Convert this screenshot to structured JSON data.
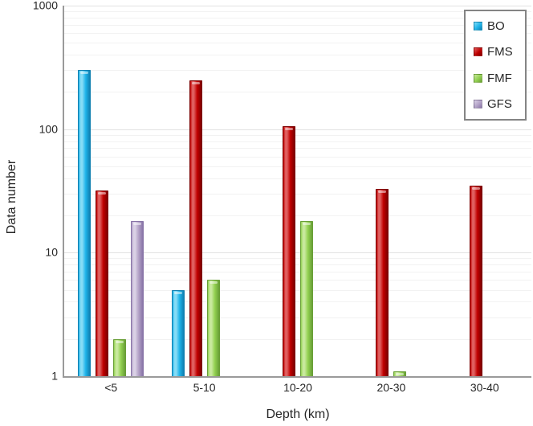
{
  "chart_data": {
    "type": "bar",
    "y_scale": "log",
    "title": "",
    "xlabel": "Depth (km)",
    "ylabel": "Data number",
    "ylim": [
      1,
      1000
    ],
    "y_ticks": [
      1,
      10,
      100,
      1000
    ],
    "grid": "horizontal log minor + major gridlines",
    "legend_position": "top-right",
    "categories": [
      "<5",
      "5-10",
      "10-20",
      "20-30",
      "30-40"
    ],
    "series": [
      {
        "name": "BO",
        "color": "#1fb4ea",
        "color_light": "#86dcf6",
        "color_dark": "#0f7fb0",
        "values": [
          300,
          5,
          null,
          null,
          null
        ]
      },
      {
        "name": "FMS",
        "color": "#c00000",
        "color_light": "#e06060",
        "color_dark": "#7d0000",
        "values": [
          32,
          250,
          105,
          33,
          35
        ]
      },
      {
        "name": "FMF",
        "color": "#92d050",
        "color_light": "#c9e99e",
        "color_dark": "#699f37",
        "values": [
          2,
          6,
          18,
          1.1,
          null
        ]
      },
      {
        "name": "GFS",
        "color": "#b3a2c7",
        "color_light": "#dad1e6",
        "color_dark": "#8874a7",
        "values": [
          18,
          null,
          null,
          null,
          null
        ]
      }
    ],
    "colors": {
      "axis_line": "#9a9a9a",
      "gridline_minor": "#f2f2f2",
      "gridline_major": "#e2e2e2",
      "legend_border": "#848484",
      "text": "#262626"
    }
  }
}
